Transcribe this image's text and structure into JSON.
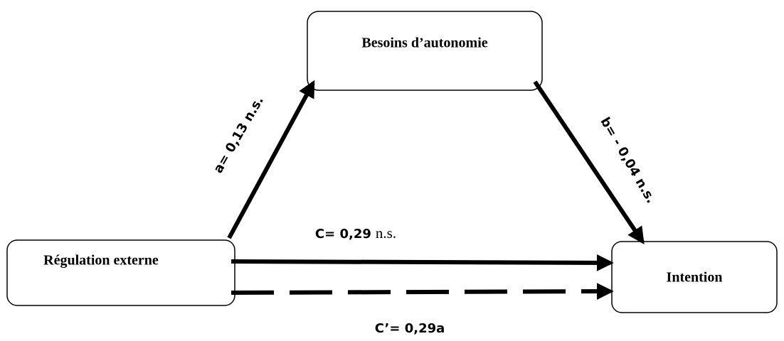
{
  "nodes": [
    {
      "label": "Besoins d’autonomie"
    },
    {
      "label": "Régulation externe"
    },
    {
      "label": "Intention"
    }
  ],
  "edges": [
    {
      "label": "a= 0,13 n.s."
    },
    {
      "label": "b= - 0,04 n.s."
    },
    {
      "label": "C= 0,29",
      "note": "n.s."
    },
    {
      "label": "C’= 0,29a"
    }
  ]
}
